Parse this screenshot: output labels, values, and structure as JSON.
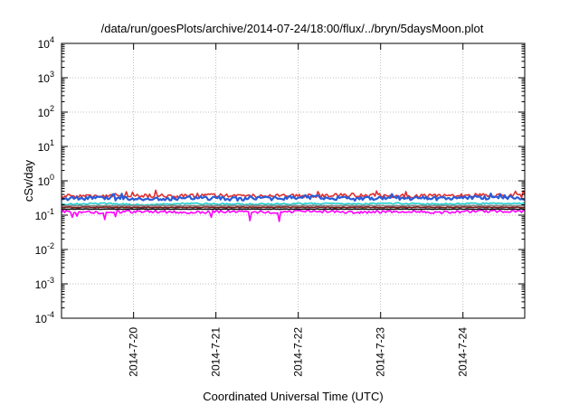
{
  "chart_data": {
    "type": "area",
    "title": "/data/run/goesPlots/archive/2014-07-24/18:00/flux/../bryn/5daysMoon.plot",
    "xlabel": "Coordinated Universal Time (UTC)",
    "ylabel": "cSv/day",
    "y_scale": "log",
    "ylim": [
      0.0001,
      10000
    ],
    "y_ticks": [
      {
        "value": 0.0001,
        "base": "10",
        "exp": "-4"
      },
      {
        "value": 0.001,
        "base": "10",
        "exp": "-3"
      },
      {
        "value": 0.01,
        "base": "10",
        "exp": "-2"
      },
      {
        "value": 0.1,
        "base": "10",
        "exp": "-1"
      },
      {
        "value": 1,
        "base": "10",
        "exp": "0"
      },
      {
        "value": 10,
        "base": "10",
        "exp": "1"
      },
      {
        "value": 100,
        "base": "10",
        "exp": "2"
      },
      {
        "value": 1000,
        "base": "10",
        "exp": "3"
      },
      {
        "value": 10000,
        "base": "10",
        "exp": "4"
      }
    ],
    "xlim": [
      "2014-07-19 03:00",
      "2014-07-24 18:00"
    ],
    "x_ticks": [
      "2014-7-20",
      "2014-7-21",
      "2014-7-22",
      "2014-7-23",
      "2014-7-24"
    ],
    "grid": true,
    "series": [
      {
        "color": "#e03030",
        "values": [
          0.36,
          0.35,
          0.37,
          0.36,
          0.38,
          0.36,
          0.37,
          0.39,
          0.36,
          0.37,
          0.38,
          0.37
        ]
      },
      {
        "color": "#2a5cd8",
        "values": [
          0.3,
          0.32,
          0.28,
          0.33,
          0.3,
          0.31,
          0.34,
          0.3,
          0.32,
          0.31,
          0.33,
          0.32
        ]
      },
      {
        "color": "#20d0d0",
        "values": [
          0.21,
          0.22,
          0.2,
          0.22,
          0.21,
          0.21,
          0.22,
          0.21,
          0.22,
          0.21,
          0.22,
          0.22
        ]
      },
      {
        "color": "#8a8a8a",
        "values": [
          0.19,
          0.19,
          0.19,
          0.19,
          0.19,
          0.19,
          0.19,
          0.19,
          0.19,
          0.19,
          0.19,
          0.19
        ]
      },
      {
        "color": "#7a1a1a",
        "values": [
          0.17,
          0.17,
          0.17,
          0.17,
          0.17,
          0.17,
          0.17,
          0.17,
          0.17,
          0.17,
          0.17,
          0.17
        ]
      },
      {
        "color": "#101010",
        "values": [
          0.15,
          0.15,
          0.15,
          0.15,
          0.15,
          0.15,
          0.15,
          0.15,
          0.15,
          0.15,
          0.15,
          0.15
        ]
      },
      {
        "color": "#ff00ff",
        "values": [
          0.13,
          0.12,
          0.13,
          0.12,
          0.13,
          0.12,
          0.13,
          0.12,
          0.13,
          0.12,
          0.13,
          0.13
        ]
      }
    ]
  }
}
